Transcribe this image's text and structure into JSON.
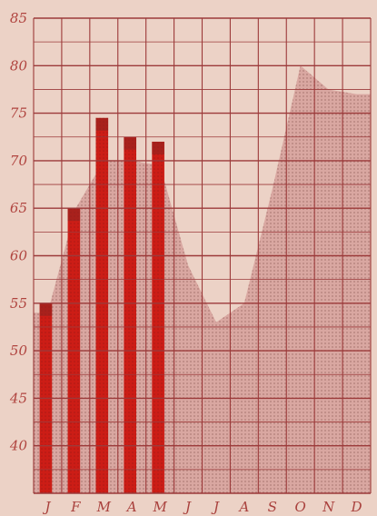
{
  "chart_data": {
    "type": "bar",
    "title": "",
    "xlabel": "",
    "ylabel": "",
    "categories": [
      "J",
      "F",
      "M",
      "A",
      "M",
      "J",
      "J",
      "A",
      "S",
      "O",
      "N",
      "D"
    ],
    "yticks": [
      "85",
      "80",
      "75",
      "70",
      "65",
      "60",
      "55",
      "50",
      "45",
      "40"
    ],
    "ylim": [
      35,
      85
    ],
    "grid": true,
    "legend": "none",
    "series": [
      {
        "type": "bar",
        "values": [
          55,
          65,
          74.5,
          72.5,
          72,
          null,
          null,
          null,
          null,
          null,
          null,
          null
        ]
      },
      {
        "type": "area",
        "values": [
          54,
          65,
          70,
          70,
          69.5,
          59,
          53,
          55,
          67,
          80,
          77.5,
          77
        ]
      }
    ],
    "colors": {
      "background": "#ecd2c6",
      "grid": "#9c3a3a",
      "bar": "#cc1d16",
      "bar_tip": "#8f2521",
      "area": "#d9a7a1",
      "area_dots": "#b07d77",
      "tick_text": "#b0443f"
    }
  }
}
